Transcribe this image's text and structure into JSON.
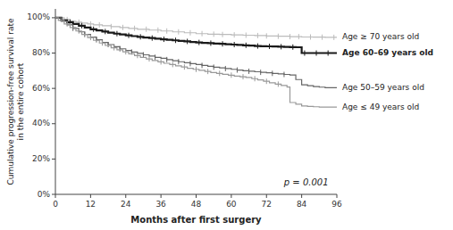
{
  "chart_data": {
    "type": "line",
    "xlabel": "Months after first surgery",
    "ylabel": "Cumulative progression-free survival rate\nin the entire cohort",
    "annotation": "p = 0.001",
    "xlim": [
      0,
      96
    ],
    "ylim": [
      0,
      1.05
    ],
    "xticks": [
      0,
      12,
      24,
      36,
      48,
      60,
      72,
      84,
      96
    ],
    "yticks": [
      {
        "value": 0,
        "label": "0%"
      },
      {
        "value": 0.2,
        "label": "20%"
      },
      {
        "value": 0.4,
        "label": "40%"
      },
      {
        "value": 0.6,
        "label": "60%"
      },
      {
        "value": 0.8,
        "label": "80%"
      },
      {
        "value": 1.0,
        "label": "100%"
      }
    ],
    "grid": false,
    "legend": "right",
    "series": [
      {
        "name": "Age ≥ 70 years old",
        "color": "#bbbbbb",
        "line_style": "solid",
        "x": [
          0,
          3,
          5,
          7,
          9,
          11,
          13,
          16,
          19,
          22,
          25,
          28,
          32,
          36,
          40,
          44,
          48,
          52,
          56,
          60,
          64,
          68,
          72,
          76,
          80,
          84,
          88,
          92,
          96
        ],
        "values": [
          1.0,
          0.99,
          0.98,
          0.975,
          0.97,
          0.965,
          0.96,
          0.955,
          0.95,
          0.945,
          0.94,
          0.935,
          0.93,
          0.925,
          0.92,
          0.915,
          0.91,
          0.907,
          0.905,
          0.903,
          0.901,
          0.899,
          0.897,
          0.895,
          0.893,
          0.891,
          0.89,
          0.889,
          0.889
        ],
        "censors": [
          4,
          8,
          12,
          15,
          19,
          23,
          27,
          31,
          35,
          38,
          42,
          46,
          50,
          54,
          57,
          61,
          65,
          69,
          72,
          76,
          80,
          83,
          87,
          91,
          95
        ]
      },
      {
        "name": "Age 60–69 years old",
        "color": "#1a1a1a",
        "line_style": "thick",
        "x": [
          0,
          2,
          4,
          6,
          8,
          10,
          12,
          14,
          16,
          18,
          20,
          22,
          24,
          26,
          28,
          30,
          32,
          34,
          36,
          38,
          40,
          42,
          44,
          46,
          48,
          50,
          52,
          54,
          56,
          58,
          60,
          62,
          64,
          66,
          68,
          70,
          72,
          74,
          76,
          78,
          80,
          82,
          84,
          86,
          88,
          90,
          92,
          94,
          96
        ],
        "values": [
          1.0,
          0.985,
          0.975,
          0.965,
          0.955,
          0.945,
          0.935,
          0.928,
          0.922,
          0.916,
          0.91,
          0.905,
          0.9,
          0.896,
          0.892,
          0.888,
          0.885,
          0.882,
          0.878,
          0.875,
          0.872,
          0.869,
          0.866,
          0.863,
          0.86,
          0.858,
          0.856,
          0.854,
          0.852,
          0.85,
          0.848,
          0.846,
          0.844,
          0.842,
          0.84,
          0.839,
          0.838,
          0.837,
          0.836,
          0.835,
          0.834,
          0.833,
          0.8,
          0.8,
          0.8,
          0.8,
          0.8,
          0.8,
          0.8
        ],
        "censors": [
          5,
          9,
          13,
          17,
          21,
          25,
          29,
          33,
          37,
          41,
          45,
          49,
          53,
          57,
          61,
          65,
          69,
          73,
          77,
          81,
          85,
          89,
          93
        ]
      },
      {
        "name": "Age 50–59 years old",
        "color": "#666666",
        "line_style": "solid",
        "x": [
          0,
          2,
          4,
          6,
          8,
          10,
          12,
          14,
          16,
          18,
          20,
          22,
          24,
          26,
          28,
          30,
          32,
          34,
          36,
          38,
          40,
          42,
          44,
          46,
          48,
          50,
          52,
          54,
          56,
          58,
          60,
          62,
          64,
          66,
          68,
          70,
          72,
          74,
          76,
          78,
          80,
          82,
          84,
          86,
          88,
          90,
          92,
          94,
          96
        ],
        "values": [
          1.0,
          0.98,
          0.96,
          0.94,
          0.92,
          0.905,
          0.89,
          0.875,
          0.86,
          0.848,
          0.836,
          0.824,
          0.815,
          0.806,
          0.798,
          0.79,
          0.783,
          0.776,
          0.77,
          0.763,
          0.757,
          0.751,
          0.745,
          0.74,
          0.735,
          0.73,
          0.725,
          0.72,
          0.716,
          0.712,
          0.708,
          0.704,
          0.7,
          0.697,
          0.694,
          0.691,
          0.688,
          0.685,
          0.682,
          0.679,
          0.676,
          0.65,
          0.62,
          0.615,
          0.61,
          0.607,
          0.604,
          0.604,
          0.604
        ],
        "censors": [
          6,
          10,
          14,
          18,
          22,
          26,
          30,
          34,
          38,
          42,
          46,
          50,
          54,
          58,
          62,
          66,
          70,
          74,
          78
        ]
      },
      {
        "name": "Age ≤ 49 years old",
        "color": "#999999",
        "line_style": "solid",
        "x": [
          0,
          1,
          3,
          5,
          7,
          9,
          11,
          13,
          15,
          17,
          19,
          21,
          23,
          25,
          27,
          29,
          31,
          33,
          35,
          37,
          39,
          41,
          43,
          45,
          47,
          49,
          51,
          53,
          55,
          57,
          59,
          61,
          63,
          65,
          67,
          69,
          71,
          73,
          75,
          77,
          79,
          80,
          82,
          84,
          86,
          88,
          90,
          92,
          94,
          96
        ],
        "values": [
          1.0,
          0.985,
          0.965,
          0.945,
          0.925,
          0.905,
          0.888,
          0.872,
          0.857,
          0.843,
          0.83,
          0.818,
          0.807,
          0.796,
          0.786,
          0.776,
          0.767,
          0.758,
          0.75,
          0.742,
          0.735,
          0.728,
          0.721,
          0.714,
          0.708,
          0.702,
          0.696,
          0.69,
          0.685,
          0.68,
          0.675,
          0.67,
          0.666,
          0.662,
          0.655,
          0.648,
          0.64,
          0.632,
          0.624,
          0.616,
          0.608,
          0.52,
          0.51,
          0.5,
          0.498,
          0.496,
          0.494,
          0.494,
          0.494,
          0.494
        ],
        "censors": [
          4,
          8,
          12,
          16,
          20,
          24,
          28,
          32,
          36,
          40,
          44,
          48,
          52,
          56,
          60,
          64,
          68,
          72,
          76
        ]
      }
    ]
  }
}
